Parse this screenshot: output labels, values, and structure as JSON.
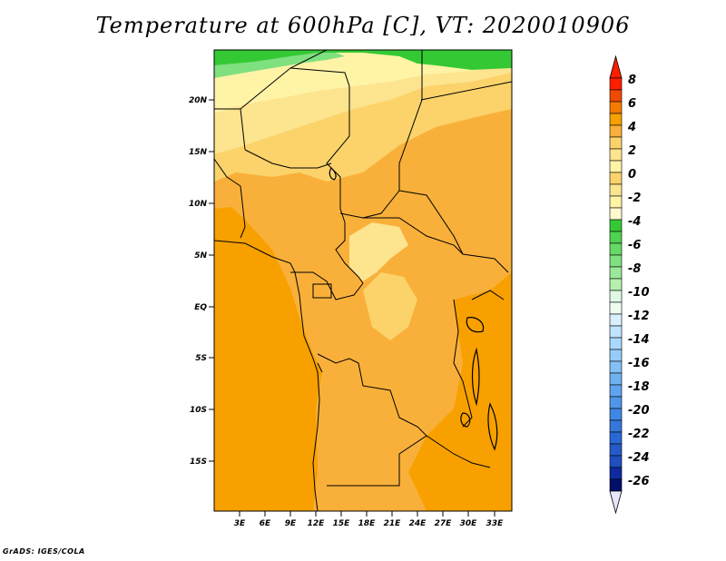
{
  "title": "Temperature at 600hPa [C], VT: 2020010906",
  "credit": "GrADS: IGES/COLA",
  "map": {
    "lat_ticks": [
      "20N",
      "15N",
      "10N",
      "5N",
      "EQ",
      "5S",
      "10S",
      "15S"
    ],
    "lon_ticks": [
      "3E",
      "6E",
      "9E",
      "12E",
      "15E",
      "18E",
      "21E",
      "24E",
      "27E",
      "30E",
      "33E"
    ],
    "colors": {
      "land_warm_deep": "#f7a000",
      "land_warm": "#f9b03a",
      "land_mild": "#fbd36a",
      "land_cool": "#fde48f",
      "north_cool": "#fff3a6",
      "green_dark": "#34c934",
      "green_light": "#7fe07f",
      "borders": "#000000"
    }
  },
  "colorbar": {
    "labels": [
      "8",
      "6",
      "4",
      "2",
      "0",
      "-2",
      "-4",
      "-6",
      "-8",
      "-10",
      "-12",
      "-14",
      "-16",
      "-18",
      "-20",
      "-22",
      "-24",
      "-26"
    ],
    "colors": [
      "#ff1e00",
      "#f04a00",
      "#f57a00",
      "#f7a000",
      "#f9b03a",
      "#fbd36a",
      "#fde48f",
      "#fff3a6",
      "#34c934",
      "#7fe07f",
      "#b4f0ac",
      "#dff8e4",
      "#d8efff",
      "#aad8ff",
      "#84c0f5",
      "#5fa4ee",
      "#3f87e4",
      "#2a68d6",
      "#1f4fbf",
      "#0f2aa1",
      "#000f6a",
      "#e8e6ff"
    ]
  }
}
